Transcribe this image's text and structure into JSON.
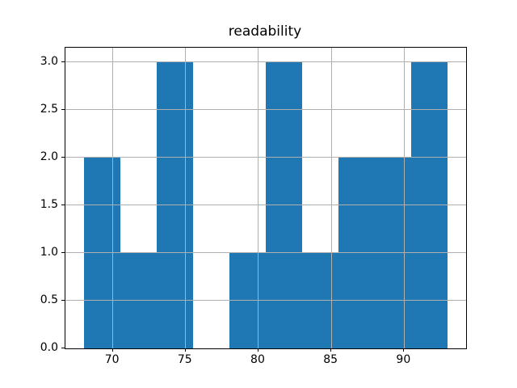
{
  "chart_data": {
    "type": "bar",
    "subtype": "histogram",
    "title": "readability",
    "xlabel": "",
    "ylabel": "",
    "bin_edges": [
      68.0,
      70.5,
      73.0,
      75.5,
      78.0,
      80.5,
      83.0,
      85.5,
      88.0,
      90.5,
      93.0
    ],
    "counts": [
      2,
      1,
      3,
      0,
      1,
      3,
      1,
      2,
      2,
      3
    ],
    "xlim": [
      66.75,
      94.25
    ],
    "ylim": [
      0,
      3.15
    ],
    "x_ticks": [
      {
        "value": 70,
        "label": "70"
      },
      {
        "value": 75,
        "label": "75"
      },
      {
        "value": 80,
        "label": "80"
      },
      {
        "value": 85,
        "label": "85"
      },
      {
        "value": 90,
        "label": "90"
      }
    ],
    "y_ticks": [
      {
        "value": 0.0,
        "label": "0.0"
      },
      {
        "value": 0.5,
        "label": "0.5"
      },
      {
        "value": 1.0,
        "label": "1.0"
      },
      {
        "value": 1.5,
        "label": "1.5"
      },
      {
        "value": 2.0,
        "label": "2.0"
      },
      {
        "value": 2.5,
        "label": "2.5"
      },
      {
        "value": 3.0,
        "label": "3.0"
      }
    ],
    "grid": true,
    "grid_over_bars": true,
    "legend": null,
    "bar_color": "#1f77b4",
    "grid_color": "#b0b0b0",
    "spine_color": "#000000",
    "text_color": "#000000",
    "background_color": "#ffffff"
  }
}
